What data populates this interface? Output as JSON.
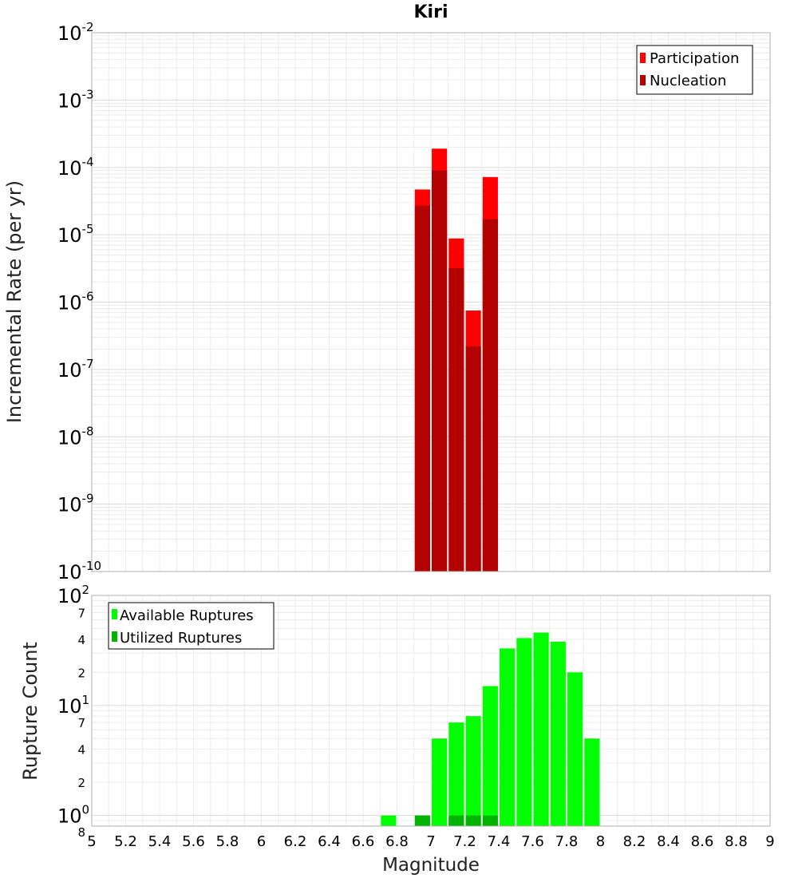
{
  "chart_data": [
    {
      "type": "bar",
      "title": "Kiri",
      "xlabel": "",
      "ylabel": "Incremental Rate (per yr)",
      "yscale": "log",
      "ylim": [
        1e-10,
        0.01
      ],
      "xlim": [
        5,
        9
      ],
      "grid": true,
      "legend_position": "top-right",
      "x": [
        6.95,
        7.05,
        7.15,
        7.25,
        7.35
      ],
      "series": [
        {
          "name": "Participation",
          "color": "#ff0000",
          "values": [
            4.7e-05,
            0.00019,
            8.8e-06,
            7.5e-07,
            7.2e-05
          ]
        },
        {
          "name": "Nucleation",
          "color": "#b30000",
          "values": [
            2.7e-05,
            9e-05,
            3.2e-06,
            2.2e-07,
            1.7e-05
          ]
        }
      ],
      "y_ticks": [
        {
          "base": "10",
          "exp": "-2",
          "value": 0.01
        },
        {
          "base": "10",
          "exp": "-3",
          "value": 0.001
        },
        {
          "base": "10",
          "exp": "-4",
          "value": 0.0001
        },
        {
          "base": "10",
          "exp": "-5",
          "value": 1e-05
        },
        {
          "base": "10",
          "exp": "-6",
          "value": 1e-06
        },
        {
          "base": "10",
          "exp": "-7",
          "value": 1e-07
        },
        {
          "base": "10",
          "exp": "-8",
          "value": 1e-08
        },
        {
          "base": "10",
          "exp": "-9",
          "value": 1e-09
        },
        {
          "base": "10",
          "exp": "-10",
          "value": 1e-10
        }
      ]
    },
    {
      "type": "bar",
      "title": "",
      "xlabel": "Magnitude",
      "ylabel": "Rupture Count",
      "yscale": "log",
      "ylim": [
        0.8,
        100
      ],
      "xlim": [
        5,
        9
      ],
      "grid": true,
      "legend_position": "top-left",
      "series": [
        {
          "name": "Available Ruptures",
          "color": "#00ff00",
          "x": [
            6.75,
            7.05,
            7.15,
            7.25,
            7.35,
            7.45,
            7.55,
            7.65,
            7.75,
            7.85,
            7.95
          ],
          "values": [
            1,
            5,
            7,
            8,
            15,
            33,
            41,
            46,
            38,
            20,
            5
          ]
        },
        {
          "name": "Utilized Ruptures",
          "color": "#00b300",
          "x": [
            6.95,
            7.15,
            7.25,
            7.35
          ],
          "values": [
            1,
            1,
            1,
            1
          ]
        }
      ],
      "y_ticks": [
        {
          "base": "10",
          "exp": "2",
          "value": 100
        },
        {
          "base": "10",
          "exp": "1",
          "value": 10
        },
        {
          "base": "10",
          "exp": "0",
          "value": 1
        }
      ],
      "y_minor_ticks": [
        {
          "label": "7",
          "value": 70
        },
        {
          "label": "4",
          "value": 40
        },
        {
          "label": "2",
          "value": 20
        },
        {
          "label": "7",
          "value": 7
        },
        {
          "label": "4",
          "value": 4
        },
        {
          "label": "2",
          "value": 2
        },
        {
          "label": "8",
          "value": 0.8
        }
      ],
      "x_ticks": [
        "5",
        "5.2",
        "5.4",
        "5.6",
        "5.8",
        "6",
        "6.2",
        "6.4",
        "6.6",
        "6.8",
        "7",
        "7.2",
        "7.4",
        "7.6",
        "7.8",
        "8",
        "8.2",
        "8.4",
        "8.6",
        "8.8",
        "9"
      ]
    }
  ]
}
